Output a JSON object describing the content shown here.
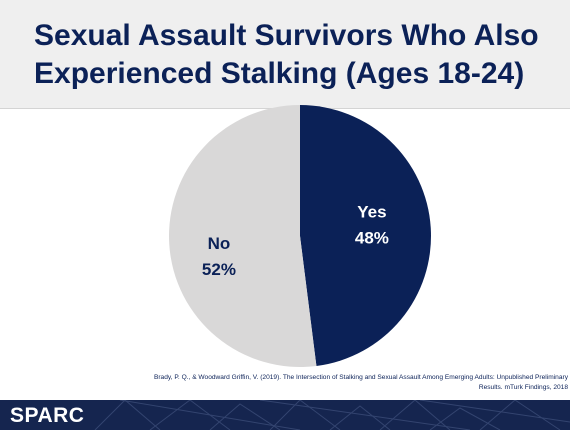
{
  "slide": {
    "title_line1": "Sexual Assault Survivors Who Also",
    "title_line2": "Experienced Stalking (Ages 18-24)",
    "citation_line1": "Brady, P. Q., & Woodward Griffin, V. (2019). The Intersection of Stalking and Sexual Assault Among Emerging Adults: Unpublished Preliminary",
    "citation_line2": "Results. mTurk Findings, 2018",
    "logo_text": "SPARC"
  },
  "colors": {
    "title": "#0b2157",
    "yes": "#0b2157",
    "no": "#d9d8d8",
    "footer": "#15254f"
  },
  "chart_data": {
    "type": "pie",
    "title": "",
    "slices": [
      {
        "label": "Yes",
        "value": 48,
        "value_label": "48%",
        "color": "#0b2157",
        "text_color": "#ffffff"
      },
      {
        "label": "No",
        "value": 52,
        "value_label": "52%",
        "color": "#d9d8d8",
        "text_color": "#0b2157"
      }
    ],
    "start": "12 o'clock",
    "direction": "clockwise",
    "legend": "none"
  }
}
